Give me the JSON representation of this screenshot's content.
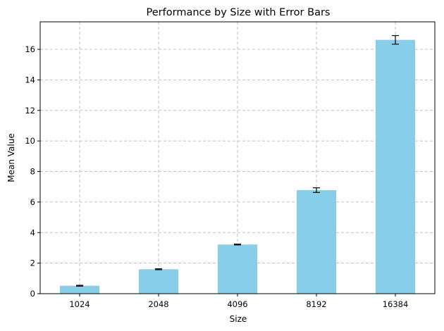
{
  "chart_data": {
    "type": "bar",
    "title": "Performance by Size with Error Bars",
    "xlabel": "Size",
    "ylabel": "Mean Value",
    "categories": [
      "1024",
      "2048",
      "4096",
      "8192",
      "16384"
    ],
    "values": [
      0.52,
      1.6,
      3.22,
      6.78,
      16.62
    ],
    "errors": [
      0.03,
      0.03,
      0.03,
      0.15,
      0.28
    ],
    "ylim": [
      0,
      17.8
    ],
    "yticks": [
      0,
      2,
      4,
      6,
      8,
      10,
      12,
      14,
      16
    ],
    "grid": true,
    "bar_color": "#87ceeb",
    "error_color": "#000000",
    "grid_color": "#b0b0b0"
  }
}
